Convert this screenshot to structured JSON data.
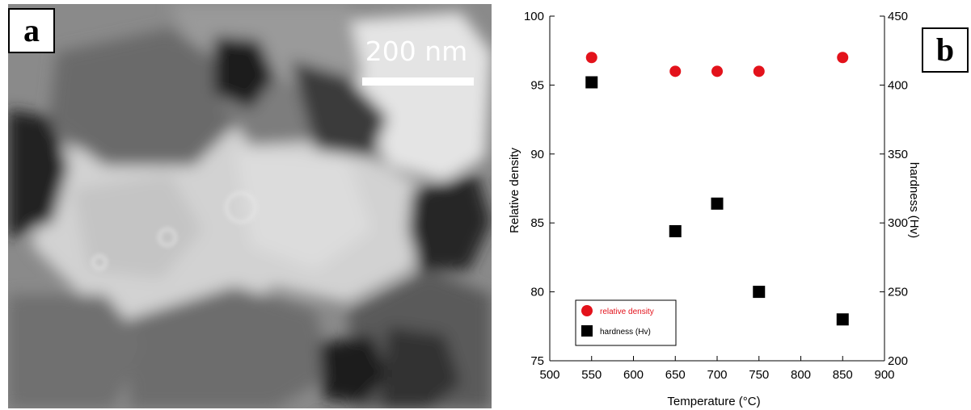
{
  "panel_a": {
    "label": "a",
    "scale_bar_text": "200 nm"
  },
  "panel_b": {
    "label": "b"
  },
  "chart_data": {
    "type": "scatter",
    "xlabel": "Temperature (°C)",
    "ylabel_left": "Relative density",
    "ylabel_right": "hardness (Hv)",
    "xlim": [
      500,
      900
    ],
    "ylim_left": [
      75,
      100
    ],
    "ylim_right": [
      200,
      450
    ],
    "x_ticks": [
      500,
      550,
      600,
      650,
      700,
      750,
      800,
      850,
      900
    ],
    "y_left_ticks": [
      75,
      80,
      85,
      90,
      95,
      100
    ],
    "y_right_ticks": [
      200,
      250,
      300,
      350,
      400,
      450
    ],
    "grid": false,
    "legend_position": "bottom-left",
    "series": [
      {
        "name": "relative density",
        "axis": "left",
        "marker": "circle",
        "color": "#e3121b",
        "x": [
          550,
          650,
          700,
          750,
          850
        ],
        "y": [
          97,
          96,
          96,
          96,
          97
        ]
      },
      {
        "name": "hardness (Hv)",
        "axis": "right",
        "marker": "square",
        "color": "#000000",
        "x": [
          550,
          650,
          700,
          750,
          850
        ],
        "y": [
          402,
          294,
          314,
          250,
          230
        ]
      }
    ]
  }
}
